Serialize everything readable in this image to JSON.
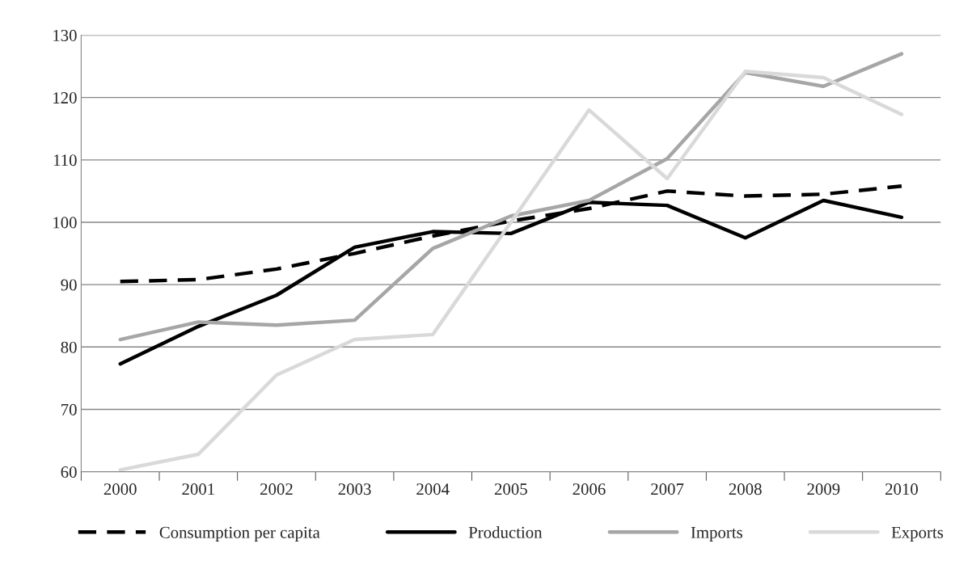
{
  "chart_data": {
    "type": "line",
    "categories": [
      "2000",
      "2001",
      "2002",
      "2003",
      "2004",
      "2005",
      "2006",
      "2007",
      "2008",
      "2009",
      "2010"
    ],
    "series": [
      {
        "name": "Consumption per capita",
        "color": "#000000",
        "line_style": "dashed",
        "values": [
          90.5,
          90.8,
          92.5,
          95,
          97.8,
          100.2,
          102.2,
          105,
          104.2,
          104.5,
          105.8
        ]
      },
      {
        "name": "Production",
        "color": "#000000",
        "line_style": "solid",
        "values": [
          77.3,
          83.3,
          88.3,
          96,
          98.5,
          98.2,
          103.2,
          102.7,
          97.5,
          103.5,
          100.8
        ]
      },
      {
        "name": "Imports",
        "color": "#a6a6a6",
        "line_style": "solid",
        "values": [
          81.2,
          84,
          83.5,
          84.3,
          95.8,
          101,
          103.5,
          110.2,
          124,
          121.8,
          127
        ]
      },
      {
        "name": "Exports",
        "color": "#d9d9d9",
        "line_style": "solid",
        "values": [
          60.3,
          62.8,
          75.5,
          81.2,
          82,
          100,
          118,
          107,
          124.2,
          123.2,
          117.3
        ]
      }
    ],
    "ylim": [
      60,
      130
    ],
    "yticks": [
      60,
      70,
      80,
      90,
      100,
      110,
      120,
      130
    ],
    "grid": "y",
    "legend": "bottom",
    "marker": "none"
  }
}
